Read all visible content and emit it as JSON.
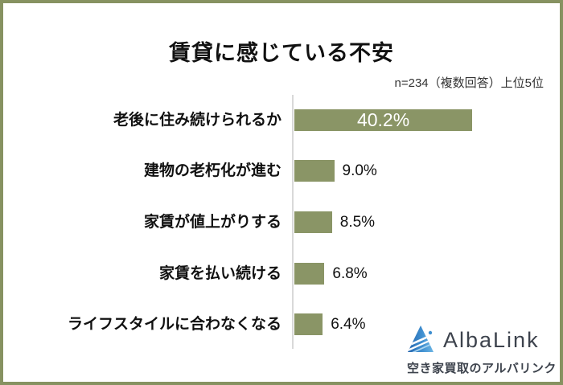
{
  "title": "賃貸に感じている不安",
  "note": "n=234（複数回答）上位5位",
  "chart_data": {
    "type": "bar",
    "orientation": "horizontal",
    "title": "賃貸に感じている不安",
    "subtitle": "n=234（複数回答）上位5位",
    "categories": [
      "老後に住み続けられるか",
      "建物の老朽化が進む",
      "家賃が値上がりする",
      "家賃を払い続ける",
      "ライフスタイルに合わなくなる"
    ],
    "values": [
      40.2,
      9.0,
      8.5,
      6.8,
      6.4
    ],
    "value_labels": [
      "40.2%",
      "9.0%",
      "8.5%",
      "6.8%",
      "6.4%"
    ],
    "xlim": [
      0,
      45
    ],
    "grid": false,
    "bar_color": "#8a9566",
    "axis_color": "#d9d9d9",
    "value_label_placement": [
      "inside",
      "outside",
      "outside",
      "outside",
      "outside"
    ]
  },
  "frame": {
    "border_color": "#879261"
  },
  "logo": {
    "brand": "AlbaLink",
    "tagline": "空き家買取のアルバリンク",
    "icon": "mountain-swoosh-icon",
    "colors": {
      "text": "#3d434d",
      "icon_dark": "#2465ae",
      "icon_mid": "#3f8fd0",
      "icon_light": "#6cb5e4"
    }
  }
}
